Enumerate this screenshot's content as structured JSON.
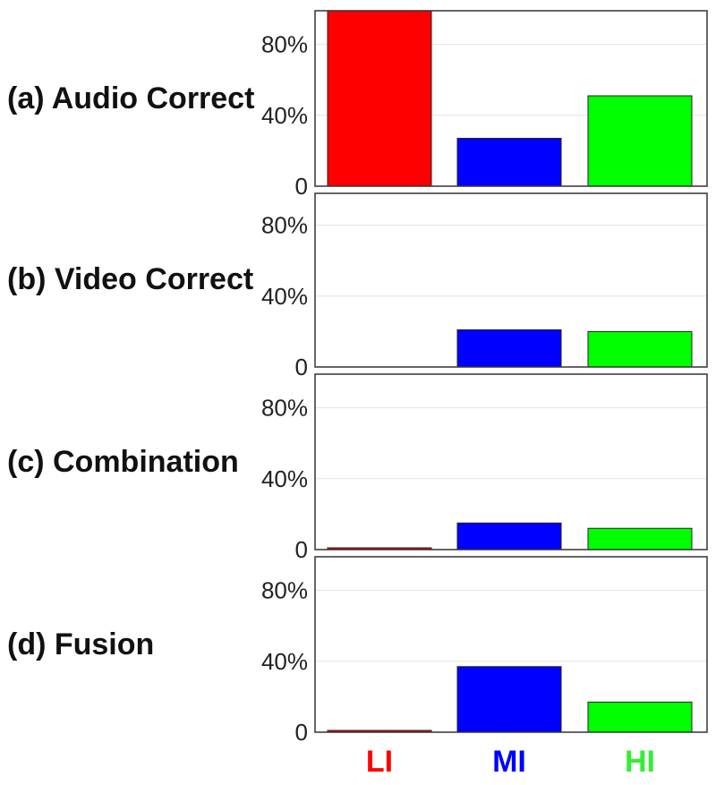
{
  "chart_data": {
    "type": "bar",
    "categories": [
      "LI",
      "MI",
      "HI"
    ],
    "category_colors": [
      "#ff0000",
      "#0000ff",
      "#00ff00"
    ],
    "ylim": [
      0,
      100
    ],
    "yticks": [
      {
        "value": 0,
        "label": "0"
      },
      {
        "value": 40,
        "label": "40%"
      },
      {
        "value": 80,
        "label": "80%"
      }
    ],
    "grid": true,
    "panels": [
      {
        "title": "(a) Audio Correct",
        "values": [
          99,
          27,
          51
        ]
      },
      {
        "title": "(b) Video Correct",
        "values": [
          0,
          21,
          20
        ]
      },
      {
        "title": "(c) Combination",
        "values": [
          1,
          15,
          12
        ]
      },
      {
        "title": "(d) Fusion",
        "values": [
          1,
          37,
          17
        ]
      }
    ]
  }
}
